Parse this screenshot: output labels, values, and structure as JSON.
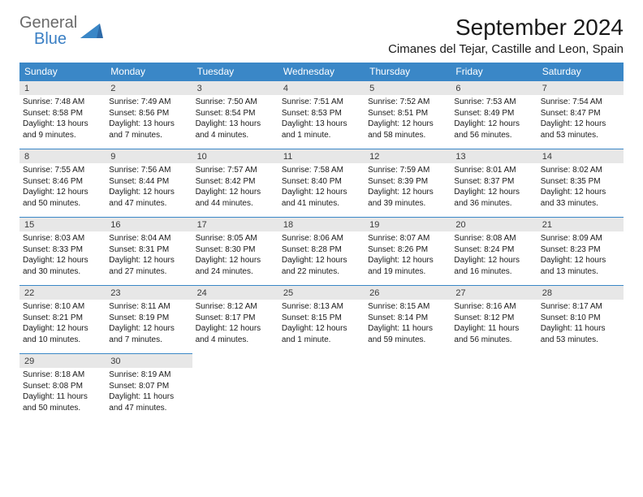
{
  "brand": {
    "general": "General",
    "blue": "Blue"
  },
  "title": "September 2024",
  "location": "Cimanes del Tejar, Castille and Leon, Spain",
  "colors": {
    "header_bg": "#3a87c7",
    "header_text": "#ffffff",
    "daynum_bg": "#e7e7e7",
    "border_top": "#3a87c7",
    "body_text": "#1a1a1a",
    "logo_gray": "#6a6a6a",
    "logo_blue": "#3a7fc4"
  },
  "dow": [
    "Sunday",
    "Monday",
    "Tuesday",
    "Wednesday",
    "Thursday",
    "Friday",
    "Saturday"
  ],
  "weeks": [
    [
      {
        "n": "1",
        "sr": "7:48 AM",
        "ss": "8:58 PM",
        "dl": "13 hours and 9 minutes."
      },
      {
        "n": "2",
        "sr": "7:49 AM",
        "ss": "8:56 PM",
        "dl": "13 hours and 7 minutes."
      },
      {
        "n": "3",
        "sr": "7:50 AM",
        "ss": "8:54 PM",
        "dl": "13 hours and 4 minutes."
      },
      {
        "n": "4",
        "sr": "7:51 AM",
        "ss": "8:53 PM",
        "dl": "13 hours and 1 minute."
      },
      {
        "n": "5",
        "sr": "7:52 AM",
        "ss": "8:51 PM",
        "dl": "12 hours and 58 minutes."
      },
      {
        "n": "6",
        "sr": "7:53 AM",
        "ss": "8:49 PM",
        "dl": "12 hours and 56 minutes."
      },
      {
        "n": "7",
        "sr": "7:54 AM",
        "ss": "8:47 PM",
        "dl": "12 hours and 53 minutes."
      }
    ],
    [
      {
        "n": "8",
        "sr": "7:55 AM",
        "ss": "8:46 PM",
        "dl": "12 hours and 50 minutes."
      },
      {
        "n": "9",
        "sr": "7:56 AM",
        "ss": "8:44 PM",
        "dl": "12 hours and 47 minutes."
      },
      {
        "n": "10",
        "sr": "7:57 AM",
        "ss": "8:42 PM",
        "dl": "12 hours and 44 minutes."
      },
      {
        "n": "11",
        "sr": "7:58 AM",
        "ss": "8:40 PM",
        "dl": "12 hours and 41 minutes."
      },
      {
        "n": "12",
        "sr": "7:59 AM",
        "ss": "8:39 PM",
        "dl": "12 hours and 39 minutes."
      },
      {
        "n": "13",
        "sr": "8:01 AM",
        "ss": "8:37 PM",
        "dl": "12 hours and 36 minutes."
      },
      {
        "n": "14",
        "sr": "8:02 AM",
        "ss": "8:35 PM",
        "dl": "12 hours and 33 minutes."
      }
    ],
    [
      {
        "n": "15",
        "sr": "8:03 AM",
        "ss": "8:33 PM",
        "dl": "12 hours and 30 minutes."
      },
      {
        "n": "16",
        "sr": "8:04 AM",
        "ss": "8:31 PM",
        "dl": "12 hours and 27 minutes."
      },
      {
        "n": "17",
        "sr": "8:05 AM",
        "ss": "8:30 PM",
        "dl": "12 hours and 24 minutes."
      },
      {
        "n": "18",
        "sr": "8:06 AM",
        "ss": "8:28 PM",
        "dl": "12 hours and 22 minutes."
      },
      {
        "n": "19",
        "sr": "8:07 AM",
        "ss": "8:26 PM",
        "dl": "12 hours and 19 minutes."
      },
      {
        "n": "20",
        "sr": "8:08 AM",
        "ss": "8:24 PM",
        "dl": "12 hours and 16 minutes."
      },
      {
        "n": "21",
        "sr": "8:09 AM",
        "ss": "8:23 PM",
        "dl": "12 hours and 13 minutes."
      }
    ],
    [
      {
        "n": "22",
        "sr": "8:10 AM",
        "ss": "8:21 PM",
        "dl": "12 hours and 10 minutes."
      },
      {
        "n": "23",
        "sr": "8:11 AM",
        "ss": "8:19 PM",
        "dl": "12 hours and 7 minutes."
      },
      {
        "n": "24",
        "sr": "8:12 AM",
        "ss": "8:17 PM",
        "dl": "12 hours and 4 minutes."
      },
      {
        "n": "25",
        "sr": "8:13 AM",
        "ss": "8:15 PM",
        "dl": "12 hours and 1 minute."
      },
      {
        "n": "26",
        "sr": "8:15 AM",
        "ss": "8:14 PM",
        "dl": "11 hours and 59 minutes."
      },
      {
        "n": "27",
        "sr": "8:16 AM",
        "ss": "8:12 PM",
        "dl": "11 hours and 56 minutes."
      },
      {
        "n": "28",
        "sr": "8:17 AM",
        "ss": "8:10 PM",
        "dl": "11 hours and 53 minutes."
      }
    ],
    [
      {
        "n": "29",
        "sr": "8:18 AM",
        "ss": "8:08 PM",
        "dl": "11 hours and 50 minutes."
      },
      {
        "n": "30",
        "sr": "8:19 AM",
        "ss": "8:07 PM",
        "dl": "11 hours and 47 minutes."
      },
      null,
      null,
      null,
      null,
      null
    ]
  ],
  "labels": {
    "sunrise": "Sunrise:",
    "sunset": "Sunset:",
    "daylight": "Daylight:"
  }
}
